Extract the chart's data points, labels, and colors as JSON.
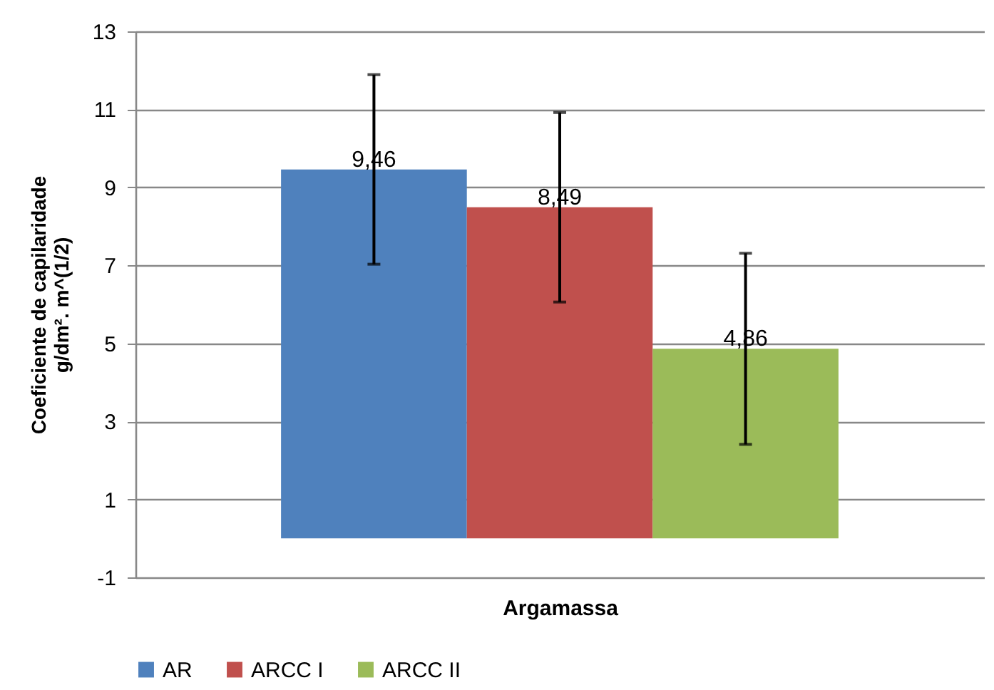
{
  "chart_data": {
    "type": "bar",
    "xlabel": "Argamassa",
    "ylabel": "Coeficiente de capilaridade\ng/dm². m^(1/2)",
    "categories": [
      null
    ],
    "series": [
      {
        "name": "AR",
        "color": "#4f81bd",
        "values": [
          9.46
        ],
        "errors": [
          2.43
        ],
        "value_labels": [
          "9,46"
        ]
      },
      {
        "name": "ARCC I",
        "color": "#c0504d",
        "values": [
          8.49
        ],
        "errors": [
          2.43
        ],
        "value_labels": [
          "8,49"
        ]
      },
      {
        "name": "ARCC II",
        "color": "#9bbb59",
        "values": [
          4.86
        ],
        "errors": [
          2.45
        ],
        "value_labels": [
          "4,86"
        ]
      }
    ],
    "ylim": [
      -1,
      13
    ],
    "yticks": [
      -1,
      1,
      3,
      5,
      7,
      9,
      11,
      13
    ],
    "grid": "y",
    "legend": "bottom"
  }
}
